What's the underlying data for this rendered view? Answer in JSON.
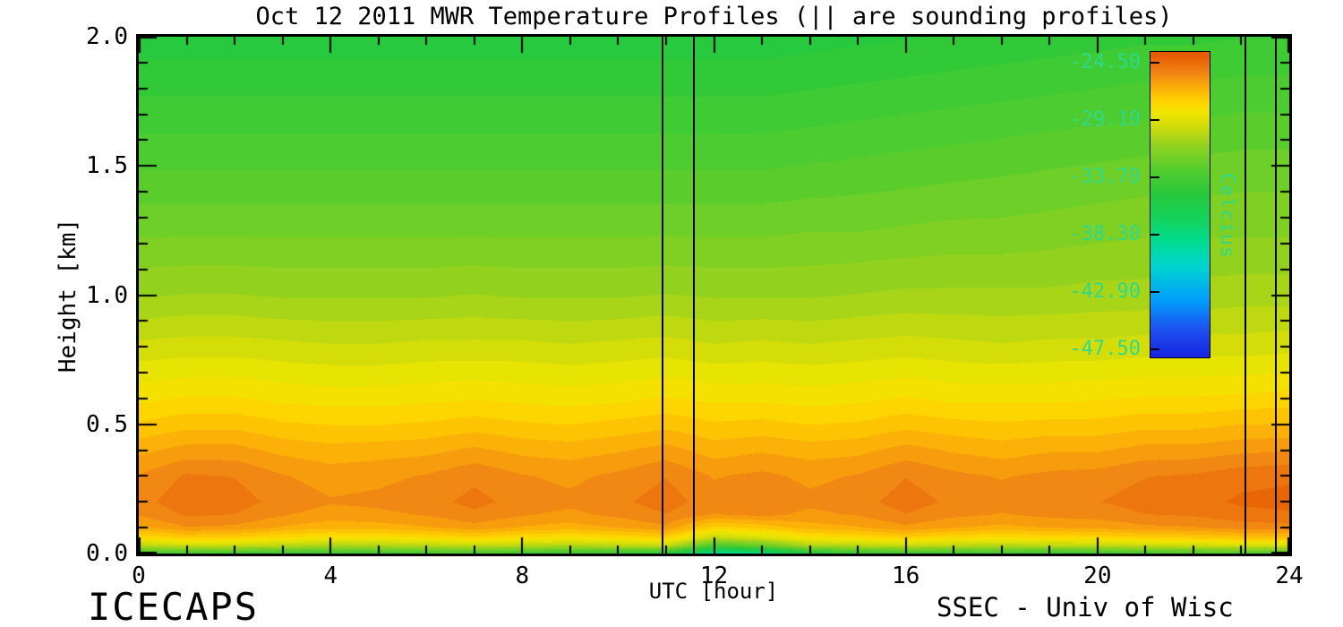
{
  "footer": {
    "left": "ICECAPS",
    "right": "SSEC - Univ of Wisc"
  },
  "chart_data": {
    "type": "heatmap",
    "title": "Oct 12 2011 MWR Temperature Profiles (|| are sounding profiles)",
    "xlabel": "UTC [hour]",
    "ylabel": "Height [km]",
    "xlim": [
      0,
      24
    ],
    "ylim": [
      0.0,
      2.0
    ],
    "x_major_ticks": [
      0,
      4,
      8,
      12,
      16,
      20,
      24
    ],
    "x_tick_labels": [
      "0",
      "4",
      "8",
      "12",
      "16",
      "20",
      "24"
    ],
    "x_minor_step": 1,
    "y_major_ticks": [
      0.0,
      0.5,
      1.0,
      1.5,
      2.0
    ],
    "y_tick_labels": [
      "0.0",
      "0.5",
      "1.0",
      "1.5",
      "2.0"
    ],
    "y_minor_step": 0.1,
    "grid": false,
    "contour_interval_c": 0.575,
    "sounding_lines_utc": [
      10.93,
      11.58,
      23.08,
      23.72
    ],
    "x_hours": [
      0,
      1,
      2,
      3,
      4,
      5,
      6,
      7,
      8,
      9,
      10,
      11,
      12,
      13,
      14,
      15,
      16,
      17,
      18,
      19,
      20,
      21,
      22,
      23,
      24
    ],
    "heights_km": [
      0.0,
      0.03,
      0.06,
      0.1,
      0.15,
      0.2,
      0.3,
      0.4,
      0.5,
      0.6,
      0.8,
      1.0,
      1.25,
      1.5,
      1.75,
      2.0
    ],
    "temperature_c": [
      [
        -34.0,
        -33.8,
        -34.0,
        -34.2,
        -34.0,
        -34.0,
        -33.8,
        -33.6,
        -34.0,
        -34.2,
        -34.4,
        -35.0,
        -39.5,
        -38.5,
        -35.5,
        -34.5,
        -34.0,
        -34.2,
        -34.0,
        -34.3,
        -34.0,
        -33.8,
        -33.6,
        -33.5,
        -33.5
      ],
      [
        -30.2,
        -29.7,
        -29.8,
        -30.2,
        -30.5,
        -30.4,
        -30.2,
        -29.9,
        -30.2,
        -30.4,
        -30.1,
        -29.8,
        -33.5,
        -32.5,
        -30.4,
        -30.2,
        -29.8,
        -30.1,
        -30.3,
        -30.1,
        -30.1,
        -29.8,
        -29.7,
        -29.4,
        -29.3
      ],
      [
        -28.0,
        -27.4,
        -27.5,
        -28.0,
        -28.3,
        -28.2,
        -28.0,
        -27.6,
        -28.0,
        -28.2,
        -27.9,
        -27.5,
        -30.0,
        -29.3,
        -28.2,
        -28.0,
        -27.5,
        -27.9,
        -28.1,
        -27.9,
        -27.8,
        -27.5,
        -27.4,
        -27.1,
        -27.0
      ],
      [
        -26.3,
        -25.7,
        -25.8,
        -26.3,
        -26.6,
        -26.5,
        -26.3,
        -25.9,
        -26.3,
        -26.5,
        -26.2,
        -25.8,
        -27.6,
        -27.2,
        -26.5,
        -26.3,
        -25.8,
        -26.2,
        -26.4,
        -26.2,
        -26.1,
        -25.8,
        -25.7,
        -25.4,
        -25.3
      ],
      [
        -25.6,
        -25.0,
        -25.1,
        -25.6,
        -25.9,
        -25.8,
        -25.6,
        -25.2,
        -25.6,
        -25.8,
        -25.5,
        -25.1,
        -25.7,
        -25.5,
        -25.8,
        -25.6,
        -25.1,
        -25.5,
        -25.7,
        -25.5,
        -25.4,
        -25.1,
        -25.0,
        -24.7,
        -24.6
      ],
      [
        -25.3,
        -24.7,
        -24.8,
        -25.3,
        -25.6,
        -25.5,
        -25.3,
        -24.9,
        -25.3,
        -25.5,
        -25.2,
        -24.8,
        -25.4,
        -25.2,
        -25.5,
        -25.3,
        -24.8,
        -25.2,
        -25.4,
        -25.2,
        -25.1,
        -24.8,
        -24.7,
        -24.4,
        -24.3
      ],
      [
        -25.6,
        -25.0,
        -25.1,
        -25.6,
        -25.9,
        -25.8,
        -25.6,
        -25.2,
        -25.6,
        -25.8,
        -25.5,
        -25.1,
        -25.7,
        -25.5,
        -25.8,
        -25.6,
        -25.1,
        -25.5,
        -25.7,
        -25.5,
        -25.4,
        -25.1,
        -25.0,
        -24.7,
        -24.6
      ],
      [
        -26.4,
        -26.0,
        -26.0,
        -26.4,
        -26.6,
        -26.5,
        -26.4,
        -26.1,
        -26.4,
        -26.5,
        -26.3,
        -26.0,
        -26.5,
        -26.3,
        -26.5,
        -26.4,
        -26.0,
        -26.3,
        -26.5,
        -26.3,
        -26.3,
        -26.0,
        -26.0,
        -25.8,
        -25.7
      ],
      [
        -27.3,
        -27.0,
        -27.0,
        -27.3,
        -27.4,
        -27.4,
        -27.3,
        -27.1,
        -27.3,
        -27.4,
        -27.2,
        -27.0,
        -27.3,
        -27.2,
        -27.4,
        -27.3,
        -27.0,
        -27.2,
        -27.3,
        -27.2,
        -27.2,
        -27.0,
        -27.0,
        -26.8,
        -26.8
      ],
      [
        -28.1,
        -27.9,
        -27.9,
        -28.1,
        -28.2,
        -28.2,
        -28.1,
        -28.0,
        -28.1,
        -28.2,
        -28.1,
        -27.9,
        -28.1,
        -28.1,
        -28.2,
        -28.1,
        -27.9,
        -28.1,
        -28.1,
        -28.1,
        -28.0,
        -27.9,
        -27.9,
        -27.8,
        -27.7
      ],
      [
        -29.5,
        -29.4,
        -29.4,
        -29.5,
        -29.6,
        -29.6,
        -29.5,
        -29.5,
        -29.5,
        -29.6,
        -29.5,
        -29.4,
        -29.6,
        -29.5,
        -29.6,
        -29.5,
        -29.4,
        -29.5,
        -29.6,
        -29.5,
        -29.5,
        -29.4,
        -29.4,
        -29.4,
        -29.3
      ],
      [
        -30.9,
        -30.8,
        -30.8,
        -30.9,
        -30.9,
        -30.9,
        -30.9,
        -30.8,
        -30.9,
        -30.9,
        -30.9,
        -30.8,
        -30.9,
        -30.9,
        -30.9,
        -30.8,
        -30.7,
        -30.7,
        -30.7,
        -30.7,
        -30.6,
        -30.6,
        -30.6,
        -30.5,
        -30.5
      ],
      [
        -32.1,
        -32.1,
        -32.1,
        -32.1,
        -32.1,
        -32.1,
        -32.1,
        -32.1,
        -32.1,
        -32.1,
        -32.1,
        -32.1,
        -32.1,
        -32.1,
        -32.0,
        -32.0,
        -31.9,
        -31.8,
        -31.8,
        -31.7,
        -31.6,
        -31.5,
        -31.5,
        -31.5,
        -31.5
      ],
      [
        -33.2,
        -33.2,
        -33.2,
        -33.2,
        -33.2,
        -33.2,
        -33.2,
        -33.2,
        -33.2,
        -33.2,
        -33.2,
        -33.2,
        -33.2,
        -33.2,
        -33.1,
        -33.0,
        -32.9,
        -32.8,
        -32.7,
        -32.6,
        -32.5,
        -32.4,
        -32.4,
        -32.3,
        -32.3
      ],
      [
        -34.2,
        -34.2,
        -34.2,
        -34.2,
        -34.2,
        -34.2,
        -34.2,
        -34.2,
        -34.2,
        -34.2,
        -34.2,
        -34.2,
        -34.2,
        -34.2,
        -34.1,
        -34.0,
        -33.9,
        -33.8,
        -33.7,
        -33.6,
        -33.5,
        -33.4,
        -33.4,
        -33.3,
        -33.3
      ],
      [
        -35.2,
        -35.2,
        -35.2,
        -35.2,
        -35.2,
        -35.2,
        -35.2,
        -35.2,
        -35.2,
        -35.2,
        -35.2,
        -35.2,
        -35.2,
        -35.2,
        -35.1,
        -35.0,
        -34.9,
        -34.8,
        -34.7,
        -34.6,
        -34.5,
        -34.4,
        -34.4,
        -34.3,
        -34.3
      ]
    ],
    "colorbar": {
      "label": "Celcius",
      "tick_labels": [
        "-24.50",
        "-29.10",
        "-33.70",
        "-38.30",
        "-42.90",
        "-47.50"
      ],
      "tick_values": [
        -24.5,
        -29.1,
        -33.7,
        -38.3,
        -42.9,
        -47.5
      ],
      "range": [
        -47.5,
        -24.5
      ],
      "label_color": "#2fd98c",
      "stops": [
        [
          -49.0,
          "#1414dc"
        ],
        [
          -46.0,
          "#1e50f0"
        ],
        [
          -43.5,
          "#00a0fa"
        ],
        [
          -41.0,
          "#00d2d2"
        ],
        [
          -39.0,
          "#00dc96"
        ],
        [
          -37.0,
          "#14d25a"
        ],
        [
          -35.0,
          "#28c83c"
        ],
        [
          -33.0,
          "#55cd2d"
        ],
        [
          -31.0,
          "#96d21e"
        ],
        [
          -29.5,
          "#d2dc0a"
        ],
        [
          -28.5,
          "#f0e600"
        ],
        [
          -27.5,
          "#ffd200"
        ],
        [
          -26.3,
          "#faaa0a"
        ],
        [
          -25.2,
          "#f08214"
        ],
        [
          -23.8,
          "#e65a00"
        ]
      ]
    }
  }
}
